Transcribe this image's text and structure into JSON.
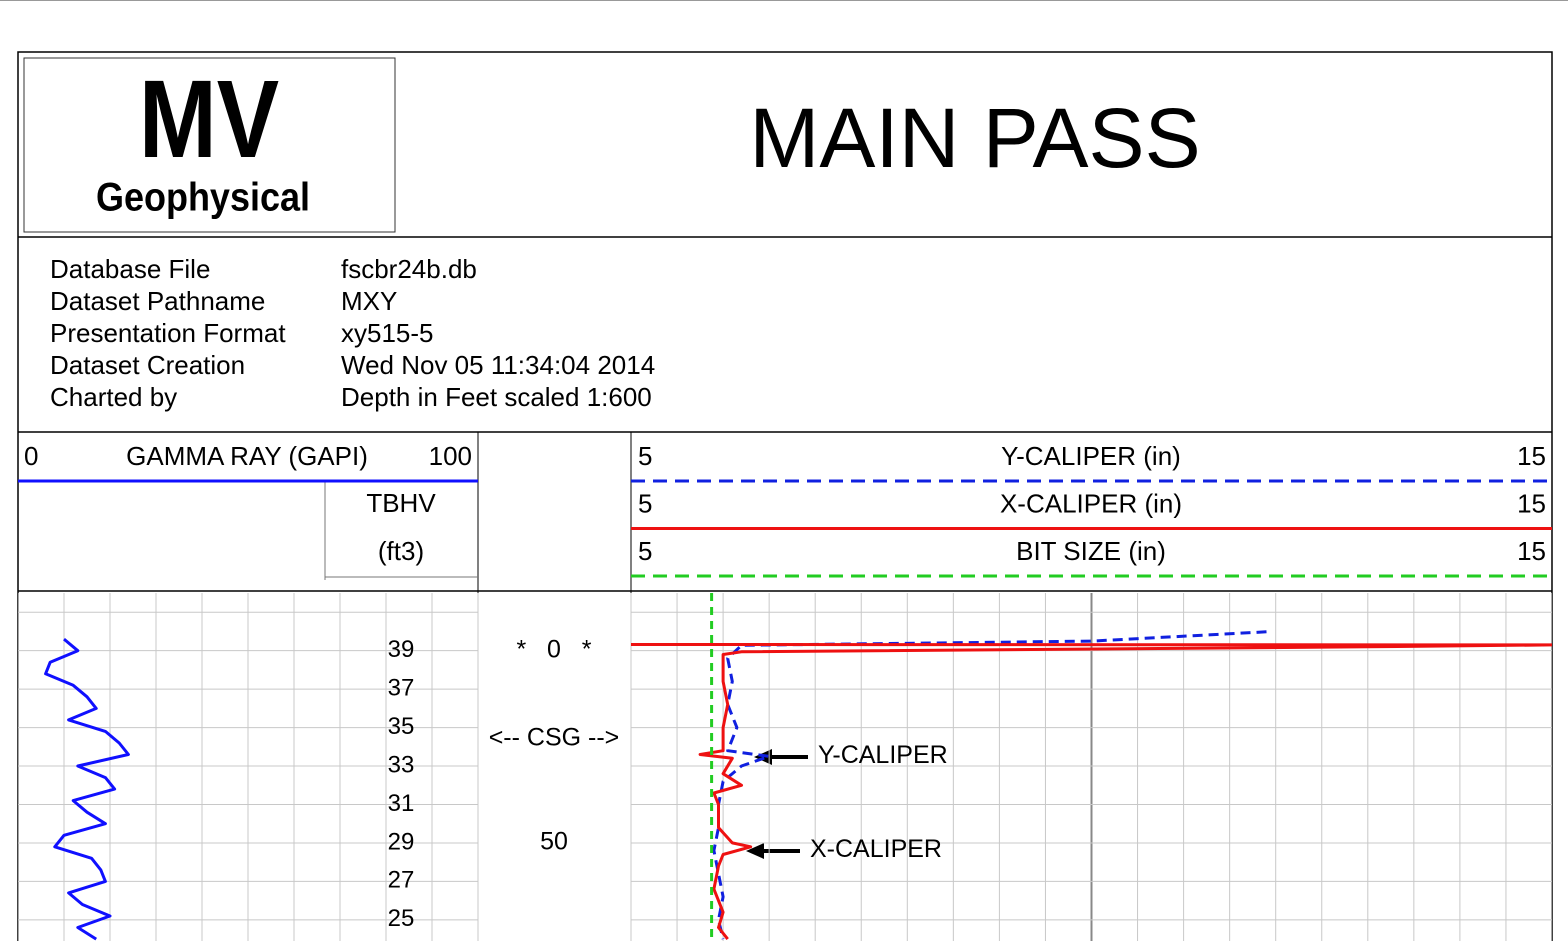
{
  "header": {
    "logo_top": "MV",
    "logo_bottom": "Geophysical",
    "title": "MAIN PASS"
  },
  "info": [
    [
      "Database File",
      "fscbr24b.db"
    ],
    [
      "Dataset Pathname",
      "MXY"
    ],
    [
      "Presentation Format",
      "xy515-5"
    ],
    [
      "Dataset Creation",
      "Wed Nov 05 11:34:04 2014"
    ],
    [
      "Charted by",
      "Depth in Feet scaled 1:600"
    ]
  ],
  "chart_data": {
    "type": "line",
    "ylim": [
      -15,
      75.5
    ],
    "yticks": [
      -10,
      0,
      10,
      20,
      30,
      40,
      50,
      60,
      70
    ],
    "series": [
      {
        "name": "GAMMA RAY (GAPI)",
        "color": "#1010ff",
        "style": "solid",
        "xlim": [
          0,
          100
        ],
        "xticks": [
          0,
          10,
          20,
          30,
          40,
          50,
          60,
          70,
          80,
          90,
          100
        ],
        "depth": [
          -3,
          0,
          3,
          6,
          9,
          12,
          15,
          18,
          21,
          24,
          27,
          30,
          33,
          36,
          39,
          42,
          45,
          48,
          51,
          54,
          57,
          60,
          63,
          66,
          69,
          72,
          75
        ],
        "values": [
          10,
          13,
          7,
          6,
          12,
          15,
          17,
          11,
          19,
          22,
          24,
          13,
          19,
          21,
          12,
          15,
          19,
          10,
          8,
          16,
          18,
          19,
          11,
          14,
          20,
          13,
          17
        ]
      },
      {
        "name": "Y-CALIPER (in)",
        "color": "#1020e0",
        "style": "dashed",
        "xlim": [
          5,
          15
        ],
        "xticks": [
          5,
          5.5,
          6,
          6.5,
          7,
          7.5,
          8,
          8.5,
          9,
          9.5,
          10,
          10.5,
          11,
          11.5,
          12,
          12.5,
          13,
          13.5,
          14,
          14.5,
          15
        ],
        "depth": [
          -4.9,
          -2.5,
          -1.4,
          2,
          8,
          14,
          20,
          26,
          27.5,
          30,
          34,
          40,
          46,
          52,
          58,
          64,
          70,
          75
        ],
        "values": [
          11.9,
          10,
          6.2,
          6.05,
          6.1,
          6.05,
          6.15,
          6.05,
          6.5,
          6.2,
          6.0,
          5.95,
          5.95,
          5.9,
          5.95,
          6.0,
          5.95,
          6.0
        ]
      },
      {
        "name": "X-CALIPER (in)",
        "color": "#ee1111",
        "style": "solid",
        "xlim": [
          5,
          15
        ],
        "depth": [
          -1.6,
          -1.5,
          -1.0,
          0.3,
          1,
          8,
          14,
          20,
          26,
          27,
          28,
          32,
          35,
          37,
          40,
          46,
          50,
          51,
          53,
          56,
          62,
          68,
          72,
          75
        ],
        "values": [
          5,
          15,
          13,
          6.2,
          6.0,
          6.0,
          6.05,
          6.0,
          6.0,
          5.75,
          6.1,
          6.0,
          6.2,
          5.9,
          5.95,
          5.95,
          6.1,
          6.3,
          6.0,
          5.95,
          5.9,
          6.0,
          5.95,
          6.05
        ]
      },
      {
        "name": "BIT SIZE (in)",
        "color": "#22cc22",
        "style": "dashed",
        "xlim": [
          5,
          15
        ],
        "depth": [
          -15,
          75.5
        ],
        "values": [
          5.875,
          5.875
        ]
      }
    ],
    "tbhv": {
      "name": "TBHV",
      "unit": "(ft3)",
      "depth": [
        0,
        10,
        20,
        30,
        40,
        50,
        60,
        70
      ],
      "values": [
        39,
        37,
        35,
        33,
        31,
        29,
        27,
        25
      ]
    },
    "depth_labels": [
      {
        "value": 0,
        "label": "*   0   *"
      },
      {
        "value": 50,
        "label": "50"
      }
    ],
    "annotations": [
      {
        "text": "<-- CSG -->",
        "depth": 23
      },
      {
        "text": "Y-CALIPER",
        "depth": 27.5
      },
      {
        "text": "X-CALIPER",
        "depth": 52
      }
    ]
  }
}
